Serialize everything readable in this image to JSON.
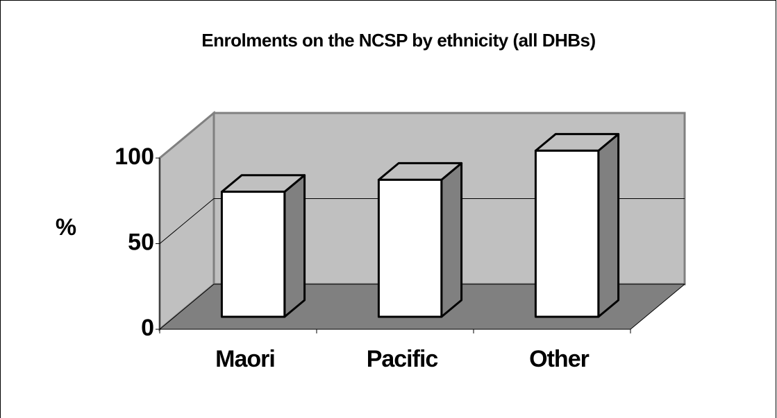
{
  "chart_data": {
    "type": "bar3d",
    "title": "Enrolments on the NCSP by ethnicity (all DHBs)",
    "y_label": "%",
    "categories": [
      "Maori",
      "Pacific",
      "Other"
    ],
    "values": [
      73,
      80,
      97
    ],
    "color": "#ffffff",
    "ylim": [
      0,
      100
    ],
    "yticks": [
      0,
      50,
      100
    ],
    "grid": true
  }
}
